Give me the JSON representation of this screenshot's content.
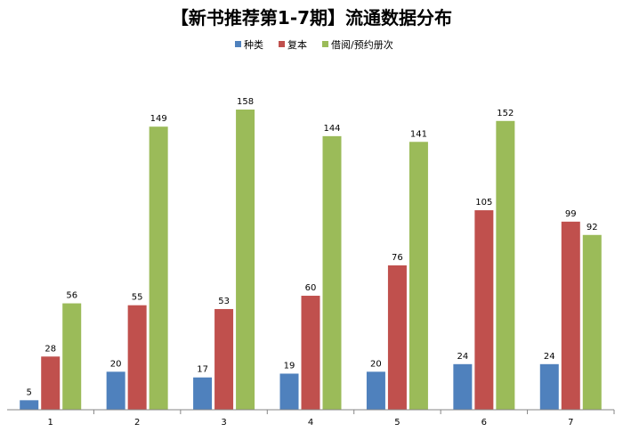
{
  "chart_data": {
    "type": "bar",
    "title": "【新书推荐第1-7期】流通数据分布",
    "categories": [
      "1",
      "2",
      "3",
      "4",
      "5",
      "6",
      "7"
    ],
    "series": [
      {
        "name": "种类",
        "color": "#4F81BD",
        "values": [
          5,
          20,
          17,
          19,
          20,
          24,
          24
        ]
      },
      {
        "name": "复本",
        "color": "#C0504D",
        "values": [
          28,
          55,
          53,
          60,
          76,
          105,
          99
        ]
      },
      {
        "name": "借阅/预约册次",
        "color": "#9BBB59",
        "values": [
          56,
          149,
          158,
          144,
          141,
          152,
          92
        ]
      }
    ],
    "ylim": [
      0,
      180
    ],
    "legend_position": "top",
    "grid": false,
    "xlabel": "",
    "ylabel": ""
  }
}
